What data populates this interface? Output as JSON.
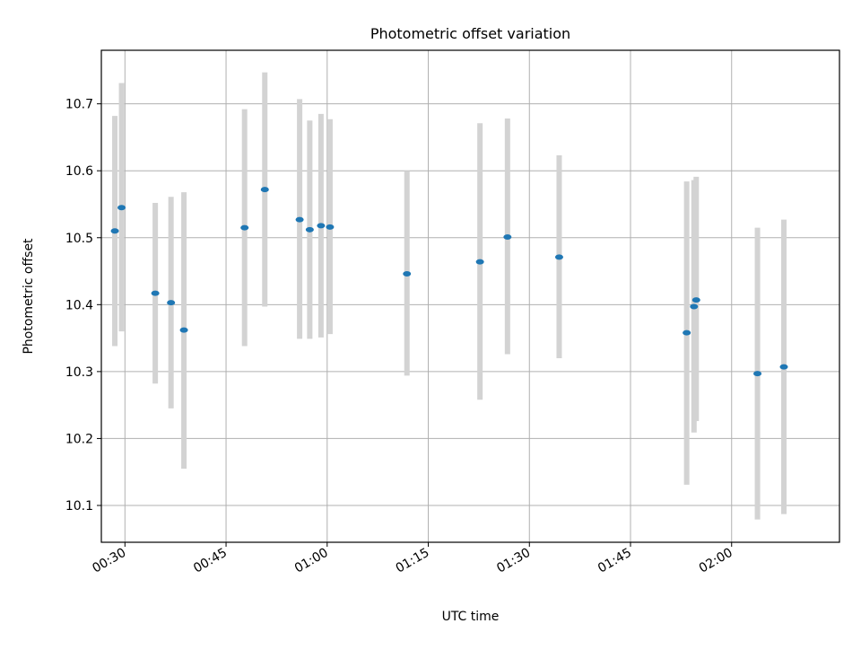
{
  "chart_data": {
    "type": "scatter",
    "title": "Photometric offset variation",
    "xlabel": "UTC time",
    "ylabel": "Photometric offset",
    "xlim": [
      "00:26:30",
      "02:16:00"
    ],
    "ylim": [
      10.045,
      10.78
    ],
    "grid": true,
    "x_ticks": [
      "00:30",
      "00:45",
      "01:00",
      "01:15",
      "01:30",
      "01:45",
      "02:00"
    ],
    "y_ticks": [
      "10.1",
      "10.2",
      "10.3",
      "10.4",
      "10.5",
      "10.6",
      "10.7"
    ],
    "marker_color": "#1f77b4",
    "errorbar_color": "#d3d3d3",
    "series": [
      {
        "points": [
          {
            "x": "00:28:30",
            "y": 10.51,
            "ylow": 10.338,
            "yhigh": 10.682
          },
          {
            "x": "00:29:30",
            "y": 10.545,
            "ylow": 10.36,
            "yhigh": 10.731
          },
          {
            "x": "00:34:30",
            "y": 10.417,
            "ylow": 10.282,
            "yhigh": 10.552
          },
          {
            "x": "00:36:50",
            "y": 10.403,
            "ylow": 10.245,
            "yhigh": 10.561
          },
          {
            "x": "00:38:45",
            "y": 10.362,
            "ylow": 10.155,
            "yhigh": 10.568
          },
          {
            "x": "00:47:45",
            "y": 10.515,
            "ylow": 10.338,
            "yhigh": 10.692
          },
          {
            "x": "00:50:45",
            "y": 10.572,
            "ylow": 10.397,
            "yhigh": 10.747
          },
          {
            "x": "00:55:55",
            "y": 10.527,
            "ylow": 10.349,
            "yhigh": 10.707
          },
          {
            "x": "00:57:25",
            "y": 10.512,
            "ylow": 10.349,
            "yhigh": 10.675
          },
          {
            "x": "00:59:05",
            "y": 10.518,
            "ylow": 10.351,
            "yhigh": 10.685
          },
          {
            "x": "01:00:25",
            "y": 10.516,
            "ylow": 10.356,
            "yhigh": 10.677
          },
          {
            "x": "01:11:50",
            "y": 10.446,
            "ylow": 10.294,
            "yhigh": 10.6
          },
          {
            "x": "01:22:40",
            "y": 10.464,
            "ylow": 10.258,
            "yhigh": 10.671
          },
          {
            "x": "01:26:45",
            "y": 10.501,
            "ylow": 10.326,
            "yhigh": 10.678
          },
          {
            "x": "01:34:25",
            "y": 10.471,
            "ylow": 10.32,
            "yhigh": 10.623
          },
          {
            "x": "01:53:20",
            "y": 10.358,
            "ylow": 10.131,
            "yhigh": 10.584
          },
          {
            "x": "01:54:25",
            "y": 10.397,
            "ylow": 10.209,
            "yhigh": 10.586
          },
          {
            "x": "01:54:45",
            "y": 10.407,
            "ylow": 10.226,
            "yhigh": 10.591
          },
          {
            "x": "02:03:50",
            "y": 10.297,
            "ylow": 10.079,
            "yhigh": 10.515
          },
          {
            "x": "02:07:45",
            "y": 10.307,
            "ylow": 10.087,
            "yhigh": 10.527
          }
        ]
      }
    ]
  }
}
